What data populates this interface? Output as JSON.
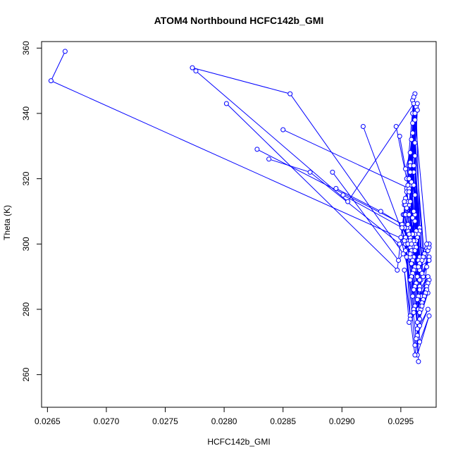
{
  "chart_data": {
    "type": "line",
    "title": "ATOM4 Northbound HCFC142b_GMI",
    "xlabel": "HCFC142b_GMI",
    "ylabel": "Theta (K)",
    "xlim": [
      0.02645,
      0.0298
    ],
    "ylim": [
      250,
      362
    ],
    "xticks": [
      0.0265,
      0.027,
      0.0275,
      0.028,
      0.0285,
      0.029,
      0.0295
    ],
    "xtick_labels": [
      "0.0265",
      "0.0270",
      "0.0275",
      "0.0280",
      "0.0285",
      "0.0290",
      "0.0295"
    ],
    "yticks": [
      260,
      280,
      300,
      320,
      340,
      360
    ],
    "ytick_labels": [
      "260",
      "280",
      "300",
      "320",
      "340",
      "360"
    ],
    "grid": false,
    "legend": "none",
    "line_color": "#0000ff",
    "marker": "open-circle",
    "series": [
      {
        "x": [
          0.02665,
          0.02653,
          0.02955,
          0.02973,
          0.02974,
          0.02969,
          0.0296,
          0.02966,
          0.02974,
          0.02969,
          0.0296,
          0.02966,
          0.02974,
          0.0297,
          0.02962,
          0.02966,
          0.02974,
          0.02968,
          0.02962,
          0.02968,
          0.02972,
          0.02967,
          0.02961,
          0.02965,
          0.02974,
          0.02967,
          0.02962,
          0.02965,
          0.02973,
          0.02967,
          0.02962,
          0.02964,
          0.02973,
          0.02966,
          0.02963,
          0.02964,
          0.02974,
          0.02966,
          0.02962,
          0.02965
        ],
        "y": [
          359,
          350,
          301,
          298,
          300,
          296,
          344,
          296,
          299,
          290,
          337,
          292,
          300,
          296,
          331,
          287,
          296,
          291,
          327,
          282,
          293,
          289,
          322,
          280,
          289,
          284,
          315,
          276,
          285,
          280,
          309,
          272,
          280,
          275,
          304,
          266,
          278,
          270,
          301,
          264
        ]
      },
      {
        "x": [
          0.02773,
          0.02856,
          0.02962,
          0.02974,
          0.02966,
          0.0296,
          0.02966,
          0.02973,
          0.02965,
          0.02959,
          0.02967,
          0.02973,
          0.02964,
          0.02958,
          0.02966,
          0.02972,
          0.02962,
          0.02958,
          0.02966,
          0.02972,
          0.02961,
          0.02957,
          0.02964,
          0.02971,
          0.02961,
          0.02956,
          0.02964,
          0.0297,
          0.02958,
          0.02954,
          0.02963,
          0.02969,
          0.02958,
          0.02955,
          0.02962,
          0.02968,
          0.02957,
          0.02953,
          0.02962,
          0.02968
        ],
        "y": [
          354,
          346,
          292,
          295,
          289,
          340,
          286,
          290,
          284,
          332,
          281,
          288,
          283,
          325,
          279,
          287,
          281,
          318,
          277,
          286,
          280,
          312,
          276,
          285,
          279,
          306,
          274,
          284,
          278,
          300,
          271,
          283,
          277,
          296,
          269,
          282,
          276,
          292,
          266,
          281
        ]
      },
      {
        "x": [
          0.02776,
          0.02905,
          0.02961,
          0.02972,
          0.02965,
          0.02958,
          0.02964,
          0.0297,
          0.02962,
          0.02955,
          0.02963,
          0.02969,
          0.02961,
          0.02953,
          0.02962,
          0.02968,
          0.0296,
          0.02952,
          0.02961,
          0.02966,
          0.02959,
          0.02951,
          0.0296,
          0.02965,
          0.02958,
          0.0295
        ],
        "y": [
          353,
          313,
          343,
          300,
          295,
          322,
          290,
          297,
          293,
          317,
          288,
          296,
          292,
          312,
          287,
          295,
          291,
          309,
          286,
          294,
          290,
          305,
          284,
          293,
          289,
          302
        ]
      },
      {
        "x": [
          0.02802,
          0.02947,
          0.02963,
          0.02966,
          0.02962,
          0.02955,
          0.02962,
          0.02966,
          0.02961,
          0.02954,
          0.02961,
          0.02965,
          0.0296,
          0.02953,
          0.0296,
          0.02964,
          0.02959,
          0.02952,
          0.02959,
          0.02963,
          0.02958
        ],
        "y": [
          343,
          292,
          342,
          305,
          300,
          316,
          298,
          304,
          299,
          312,
          296,
          303,
          298,
          309,
          295,
          302,
          297,
          306,
          294,
          301,
          296
        ]
      },
      {
        "x": [
          0.0285,
          0.02957,
          0.02964,
          0.02958,
          0.02962,
          0.02956,
          0.02963,
          0.02957,
          0.02961,
          0.02955,
          0.02962,
          0.02956,
          0.0296,
          0.02954
        ],
        "y": [
          335,
          317,
          341,
          302,
          307,
          313,
          304,
          305,
          310,
          311,
          303,
          304,
          308,
          309
        ]
      },
      {
        "x": [
          0.02828,
          0.02952,
          0.02964,
          0.02957,
          0.02961,
          0.02955,
          0.02963,
          0.02956,
          0.0296,
          0.02954
        ],
        "y": [
          329,
          306,
          341,
          300,
          301,
          305,
          299,
          300,
          303,
          302
        ]
      },
      {
        "x": [
          0.02838,
          0.02873,
          0.02949,
          0.02958,
          0.02954,
          0.02959,
          0.02953,
          0.02957
        ],
        "y": [
          326,
          322,
          300,
          299,
          302,
          298,
          301,
          300
        ]
      },
      {
        "x": [
          0.02892,
          0.02948,
          0.02954,
          0.02958,
          0.02952,
          0.02956
        ],
        "y": [
          322,
          295,
          298,
          301,
          297,
          300
        ]
      },
      {
        "x": [
          0.02895,
          0.02933,
          0.02951,
          0.02957,
          0.02953
        ],
        "y": [
          317,
          310,
          306,
          303,
          305
        ]
      },
      {
        "x": [
          0.02901,
          0.02951,
          0.02959
        ],
        "y": [
          315,
          305,
          300
        ]
      },
      {
        "x": [
          0.02918,
          0.02958,
          0.02962
        ],
        "y": [
          336,
          297,
          298
        ]
      },
      {
        "x": [
          0.02946,
          0.02956,
          0.02962,
          0.02958,
          0.02962,
          0.02956,
          0.02964,
          0.02958,
          0.02961,
          0.02955,
          0.02962,
          0.02957,
          0.0296
        ],
        "y": [
          336,
          318,
          346,
          313,
          338,
          306,
          343,
          324,
          345,
          320,
          340,
          316,
          334
        ]
      },
      {
        "x": [
          0.02949,
          0.02954,
          0.02958,
          0.02961,
          0.02957,
          0.02954,
          0.02959,
          0.02961,
          0.02957,
          0.02953
        ],
        "y": [
          333,
          323,
          328,
          318,
          320,
          314,
          319,
          324,
          309,
          313
        ]
      }
    ]
  }
}
